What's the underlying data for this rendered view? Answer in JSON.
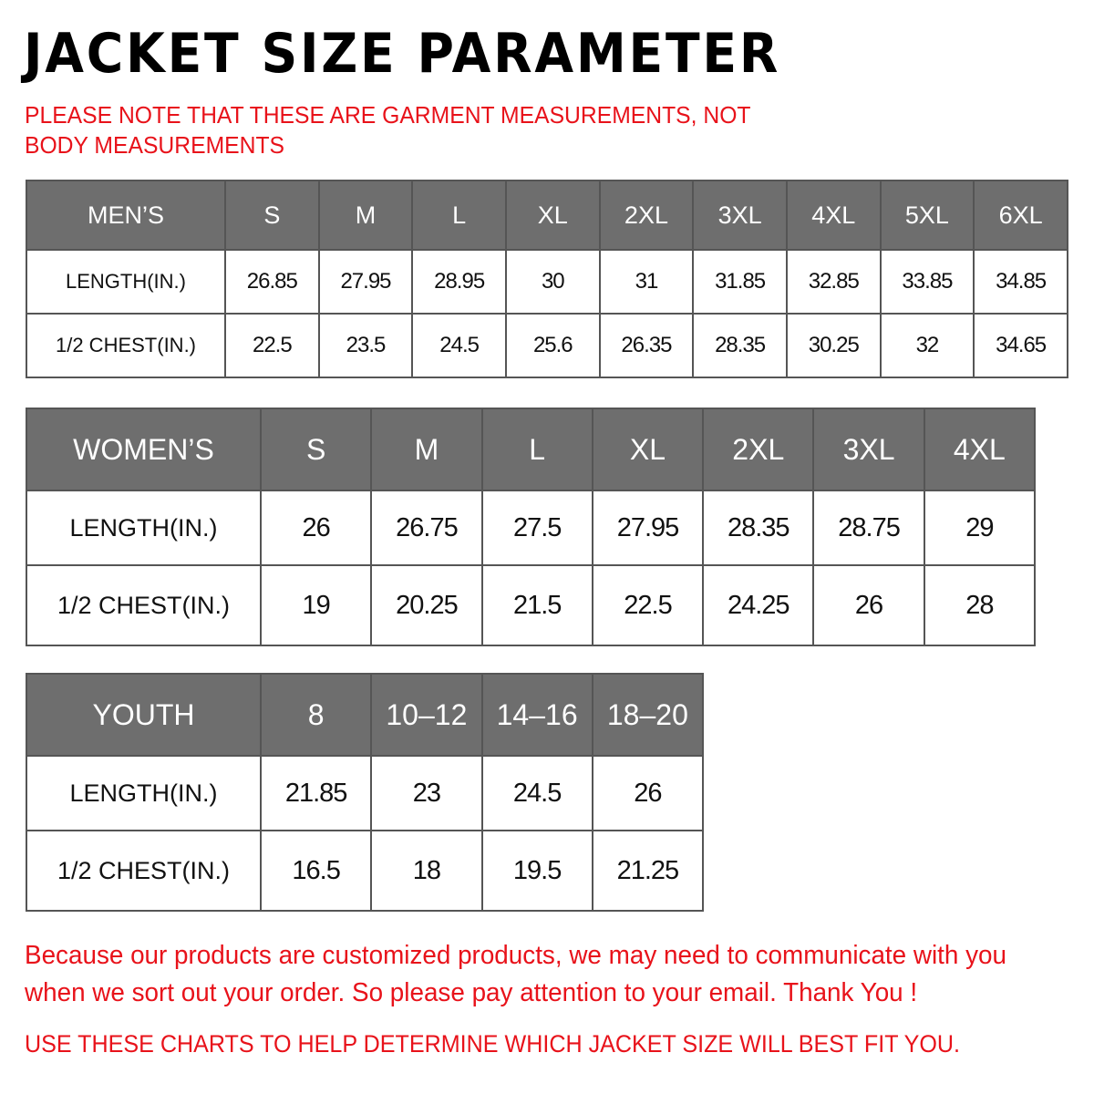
{
  "title": "JACKET  SIZE  PARAMETER",
  "note": "PLEASE NOTE THAT THESE ARE GARMENT MEASUREMENTS, NOT BODY MEASUREMENTS",
  "colors": {
    "header_bg": "#6e6e6e",
    "accent_red": "#e8121a"
  },
  "tables": {
    "men": {
      "header": [
        "MEN’S",
        "S",
        "M",
        "L",
        "XL",
        "2XL",
        "3XL",
        "4XL",
        "5XL",
        "6XL"
      ],
      "rows": [
        [
          "LENGTH(IN.)",
          "26.85",
          "27.95",
          "28.95",
          "30",
          "31",
          "31.85",
          "32.85",
          "33.85",
          "34.85"
        ],
        [
          "1/2 CHEST(IN.)",
          "22.5",
          "23.5",
          "24.5",
          "25.6",
          "26.35",
          "28.35",
          "30.25",
          "32",
          "34.65"
        ]
      ]
    },
    "women": {
      "header": [
        "WOMEN’S",
        "S",
        "M",
        "L",
        "XL",
        "2XL",
        "3XL",
        "4XL"
      ],
      "rows": [
        [
          "LENGTH(IN.)",
          "26",
          "26.75",
          "27.5",
          "27.95",
          "28.35",
          "28.75",
          "29"
        ],
        [
          "1/2 CHEST(IN.)",
          "19",
          "20.25",
          "21.5",
          "22.5",
          "24.25",
          "26",
          "28"
        ]
      ]
    },
    "youth": {
      "header": [
        "YOUTH",
        "8",
        "10–12",
        "14–16",
        "18–20"
      ],
      "rows": [
        [
          "LENGTH(IN.)",
          "21.85",
          "23",
          "24.5",
          "26"
        ],
        [
          "1/2 CHEST(IN.)",
          "16.5",
          "18",
          "19.5",
          "21.25"
        ]
      ]
    }
  },
  "message": "Because our products are customized products, we may need to communicate with you when we sort out your order. So please pay attention to your email. Thank You !",
  "footer": "USE THESE CHARTS TO HELP DETERMINE WHICH JACKET SIZE WILL BEST FIT YOU."
}
